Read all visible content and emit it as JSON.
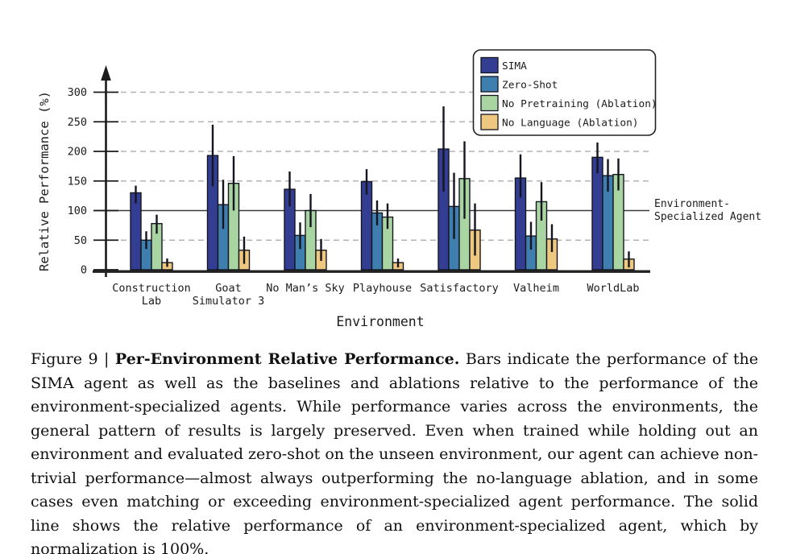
{
  "figure": {
    "caption_prefix": "Figure 9 | ",
    "caption_bold": "Per-Environment Relative Performance.",
    "caption_body": " Bars indicate the performance of the SIMA agent as well as the baselines and ablations relative to the performance of the environment-specialized agents. While performance varies across the environments, the general pattern of results is largely preserved. Even when trained while holding out an environment and evaluated zero-shot on the unseen environment, our agent can achieve non-trivial performance—almost always outperforming the no-language ablation, and in some cases even matching or exceeding environment-specialized agent performance. The solid line shows the relative performance of an environment-specialized agent, which by normalization is 100%."
  },
  "chart_data": {
    "type": "bar",
    "title": "",
    "xlabel": "Environment",
    "ylabel": "Relative Performance (%)",
    "ylim": [
      0,
      300
    ],
    "yticks": [
      0,
      50,
      100,
      150,
      200,
      250,
      300
    ],
    "grid": "horizontal dashed at 50/150/200/250/300, solid dark line at 100",
    "legend_position": "upper right",
    "categories": [
      "Construction Lab",
      "Goat Simulator 3",
      "No Man's Sky",
      "Playhouse",
      "Satisfactory",
      "Valheim",
      "WorldLab"
    ],
    "tick_label_lines": [
      [
        "Construction",
        "Lab"
      ],
      [
        "Goat",
        "Simulator 3"
      ],
      [
        "No Man’s Sky"
      ],
      [
        "Playhouse"
      ],
      [
        "Satisfactory"
      ],
      [
        "Valheim"
      ],
      [
        "WorldLab"
      ]
    ],
    "series": [
      {
        "name": "SIMA",
        "color": "#333e92",
        "values": [
          130,
          193,
          136,
          149,
          204,
          155,
          190
        ],
        "err_low": [
          112,
          141,
          107,
          127,
          132,
          122,
          163
        ],
        "err_high": [
          142,
          245,
          166,
          170,
          276,
          195,
          215
        ]
      },
      {
        "name": "Zero-Shot",
        "color": "#3f7fb0",
        "values": [
          50,
          110,
          58,
          96,
          107,
          57,
          159
        ],
        "err_low": [
          35,
          69,
          35,
          75,
          52,
          34,
          132
        ],
        "err_high": [
          65,
          152,
          80,
          117,
          164,
          81,
          187
        ]
      },
      {
        "name": "No Pretraining (Ablation)",
        "color": "#a9d5a2",
        "values": [
          78,
          146,
          100,
          89,
          154,
          115,
          161
        ],
        "err_low": [
          61,
          100,
          72,
          69,
          86,
          83,
          134
        ],
        "err_high": [
          93,
          192,
          128,
          112,
          217,
          148,
          188
        ]
      },
      {
        "name": "No Language (Ablation)",
        "color": "#edc87e",
        "values": [
          12,
          33,
          33,
          12,
          67,
          52,
          18
        ],
        "err_low": [
          5,
          10,
          15,
          4,
          24,
          30,
          4
        ],
        "err_high": [
          19,
          56,
          52,
          19,
          112,
          77,
          31
        ]
      }
    ],
    "reference_line": {
      "value": 100,
      "label_lines": [
        "Environment-",
        "Specialized Agent"
      ]
    },
    "colors": {
      "axis": "#1a1a1a",
      "gridline": "#b3b3b3",
      "reference": "#3c3c3c",
      "error_bar": "#15151f"
    }
  }
}
